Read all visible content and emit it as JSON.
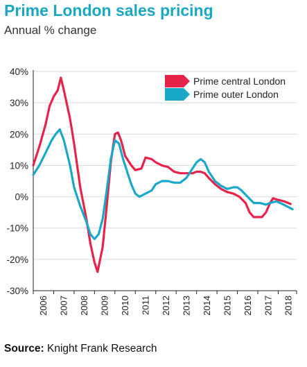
{
  "title": "Prime London sales pricing",
  "subtitle": "Annual % change",
  "source_label": "Source:",
  "source_text": "Knight Frank Research",
  "colors": {
    "title": "#1aa7c4",
    "central": "#e8234a",
    "outer": "#19a8c9",
    "axis": "#222222",
    "grid": "#d9d9d9"
  },
  "chart_data": {
    "type": "line",
    "title": "Prime London sales pricing",
    "subtitle": "Annual % change",
    "xlabel": "",
    "ylabel": "",
    "xlim": [
      2006,
      2018.9
    ],
    "ylim": [
      -30,
      40
    ],
    "y_ticks": [
      40,
      30,
      20,
      10,
      0,
      -10,
      -20,
      -30
    ],
    "y_tick_labels": [
      "40%",
      "30%",
      "20%",
      "10%",
      "0%",
      "-10%",
      "-20%",
      "-30%"
    ],
    "x_ticks": [
      "2006",
      "2007",
      "2008",
      "2009",
      "2010",
      "2011",
      "2012",
      "2013",
      "2014",
      "2015",
      "2016",
      "2017",
      "2018"
    ],
    "grid": "horizontal",
    "legend_position": "top-right",
    "series": [
      {
        "name": "Prime central London",
        "color": "#e8234a",
        "points": [
          [
            2006.0,
            10
          ],
          [
            2006.3,
            16
          ],
          [
            2006.6,
            23
          ],
          [
            2006.8,
            29
          ],
          [
            2007.0,
            32
          ],
          [
            2007.2,
            34
          ],
          [
            2007.35,
            38
          ],
          [
            2007.5,
            34
          ],
          [
            2007.8,
            25
          ],
          [
            2008.0,
            17
          ],
          [
            2008.3,
            3
          ],
          [
            2008.6,
            -7
          ],
          [
            2008.8,
            -15
          ],
          [
            2009.0,
            -21
          ],
          [
            2009.15,
            -24
          ],
          [
            2009.4,
            -16
          ],
          [
            2009.6,
            -3
          ],
          [
            2009.8,
            11
          ],
          [
            2010.0,
            20
          ],
          [
            2010.15,
            20.5
          ],
          [
            2010.3,
            18
          ],
          [
            2010.5,
            13
          ],
          [
            2010.8,
            10
          ],
          [
            2011.0,
            8.5
          ],
          [
            2011.3,
            9
          ],
          [
            2011.5,
            12.5
          ],
          [
            2011.8,
            12
          ],
          [
            2012.0,
            11
          ],
          [
            2012.3,
            10
          ],
          [
            2012.6,
            9.5
          ],
          [
            2012.9,
            8
          ],
          [
            2013.2,
            7.5
          ],
          [
            2013.5,
            7.5
          ],
          [
            2013.8,
            7.5
          ],
          [
            2014.0,
            8
          ],
          [
            2014.2,
            8
          ],
          [
            2014.4,
            7.5
          ],
          [
            2014.6,
            6
          ],
          [
            2014.9,
            4
          ],
          [
            2015.2,
            2.5
          ],
          [
            2015.5,
            1.5
          ],
          [
            2015.8,
            1
          ],
          [
            2016.1,
            0
          ],
          [
            2016.4,
            -2
          ],
          [
            2016.6,
            -5
          ],
          [
            2016.8,
            -6.5
          ],
          [
            2017.0,
            -6.5
          ],
          [
            2017.2,
            -6.5
          ],
          [
            2017.4,
            -5
          ],
          [
            2017.6,
            -2
          ],
          [
            2017.75,
            -0.5
          ],
          [
            2018.0,
            -1
          ],
          [
            2018.3,
            -1.5
          ],
          [
            2018.6,
            -2.3
          ]
        ]
      },
      {
        "name": "Prime outer London",
        "color": "#19a8c9",
        "points": [
          [
            2006.0,
            7
          ],
          [
            2006.3,
            10
          ],
          [
            2006.6,
            14
          ],
          [
            2006.9,
            18
          ],
          [
            2007.1,
            20
          ],
          [
            2007.3,
            21.5
          ],
          [
            2007.5,
            18
          ],
          [
            2007.8,
            10
          ],
          [
            2008.0,
            3
          ],
          [
            2008.3,
            -3
          ],
          [
            2008.6,
            -8
          ],
          [
            2008.8,
            -12
          ],
          [
            2009.0,
            -13.5
          ],
          [
            2009.2,
            -12
          ],
          [
            2009.4,
            -7
          ],
          [
            2009.6,
            2
          ],
          [
            2009.8,
            12
          ],
          [
            2010.0,
            18
          ],
          [
            2010.2,
            17
          ],
          [
            2010.4,
            12
          ],
          [
            2010.6,
            8
          ],
          [
            2010.8,
            4
          ],
          [
            2011.0,
            1
          ],
          [
            2011.2,
            0
          ],
          [
            2011.5,
            1
          ],
          [
            2011.8,
            2
          ],
          [
            2012.0,
            4
          ],
          [
            2012.3,
            5
          ],
          [
            2012.6,
            5
          ],
          [
            2012.9,
            4.5
          ],
          [
            2013.2,
            4.5
          ],
          [
            2013.5,
            6
          ],
          [
            2013.8,
            9
          ],
          [
            2014.0,
            11
          ],
          [
            2014.2,
            12
          ],
          [
            2014.4,
            11
          ],
          [
            2014.6,
            8
          ],
          [
            2014.9,
            5
          ],
          [
            2015.2,
            3.5
          ],
          [
            2015.5,
            2.5
          ],
          [
            2015.8,
            3
          ],
          [
            2016.0,
            3
          ],
          [
            2016.2,
            2
          ],
          [
            2016.5,
            0
          ],
          [
            2016.8,
            -2
          ],
          [
            2017.1,
            -2
          ],
          [
            2017.4,
            -2.5
          ],
          [
            2017.6,
            -2
          ],
          [
            2017.9,
            -1.5
          ],
          [
            2018.1,
            -2
          ],
          [
            2018.4,
            -3
          ],
          [
            2018.7,
            -4
          ]
        ]
      }
    ]
  }
}
